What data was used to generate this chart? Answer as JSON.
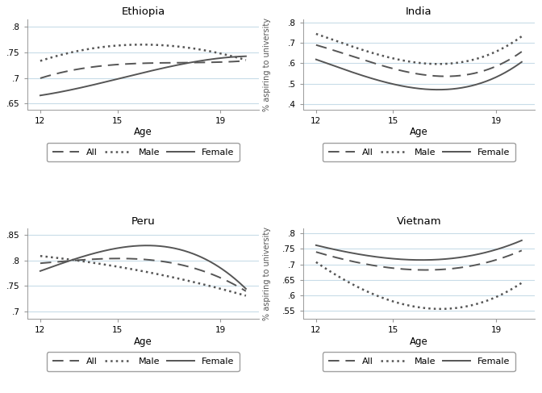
{
  "panels": [
    {
      "title": "Ethiopia",
      "ylim": [
        0.638,
        0.815
      ],
      "yticks": [
        0.65,
        0.7,
        0.75,
        0.8
      ],
      "yticklabels": [
        ".65",
        ".7",
        ".75",
        ".8"
      ],
      "ylabel_right": true,
      "all": {
        "x": [
          12,
          13,
          14,
          15,
          16,
          17,
          18,
          19,
          20
        ],
        "y": [
          0.7,
          0.712,
          0.72,
          0.726,
          0.73,
          0.731,
          0.73,
          0.728,
          0.735
        ]
      },
      "male": {
        "x": [
          12,
          13,
          14,
          15,
          16,
          17,
          18,
          19,
          20
        ],
        "y": [
          0.733,
          0.748,
          0.758,
          0.763,
          0.765,
          0.763,
          0.758,
          0.748,
          0.735
        ]
      },
      "female": {
        "x": [
          12,
          13,
          14,
          15,
          16,
          17,
          18,
          19,
          20
        ],
        "y": [
          0.666,
          0.674,
          0.685,
          0.698,
          0.711,
          0.722,
          0.731,
          0.738,
          0.743
        ]
      }
    },
    {
      "title": "India",
      "ylim": [
        0.375,
        0.815
      ],
      "yticks": [
        0.4,
        0.5,
        0.6,
        0.7,
        0.8
      ],
      "yticklabels": [
        ".4",
        ".5",
        ".6",
        ".7",
        ".8"
      ],
      "ylabel_right": false,
      "all": {
        "x": [
          12,
          13,
          14,
          15,
          16,
          17,
          18,
          19,
          20
        ],
        "y": [
          0.685,
          0.655,
          0.625,
          0.56,
          0.54,
          0.54,
          0.555,
          0.585,
          0.655
        ]
      },
      "male": {
        "x": [
          12,
          13,
          14,
          15,
          16,
          17,
          18,
          19,
          20
        ],
        "y": [
          0.74,
          0.705,
          0.665,
          0.615,
          0.598,
          0.6,
          0.618,
          0.658,
          0.73
        ]
      },
      "female": {
        "x": [
          12,
          13,
          14,
          15,
          16,
          17,
          18,
          19,
          20
        ],
        "y": [
          0.615,
          0.58,
          0.54,
          0.49,
          0.472,
          0.474,
          0.494,
          0.533,
          0.605
        ]
      }
    },
    {
      "title": "Peru",
      "ylim": [
        0.685,
        0.862
      ],
      "yticks": [
        0.7,
        0.75,
        0.8,
        0.85
      ],
      "yticklabels": [
        ".7",
        ".75",
        ".8",
        ".85"
      ],
      "ylabel_right": true,
      "all": {
        "x": [
          12,
          13,
          14,
          15,
          16,
          17,
          18,
          19,
          20
        ],
        "y": [
          0.793,
          0.8,
          0.803,
          0.803,
          0.8,
          0.795,
          0.785,
          0.768,
          0.738
        ]
      },
      "male": {
        "x": [
          12,
          13,
          14,
          15,
          16,
          17,
          18,
          19,
          20
        ],
        "y": [
          0.808,
          0.803,
          0.796,
          0.787,
          0.778,
          0.768,
          0.757,
          0.745,
          0.73
        ]
      },
      "female": {
        "x": [
          12,
          13,
          14,
          15,
          16,
          17,
          18,
          19,
          20
        ],
        "y": [
          0.778,
          0.798,
          0.813,
          0.823,
          0.828,
          0.825,
          0.812,
          0.787,
          0.743
        ]
      }
    },
    {
      "title": "Vietnam",
      "ylim": [
        0.525,
        0.815
      ],
      "yticks": [
        0.55,
        0.6,
        0.65,
        0.7,
        0.75,
        0.8
      ],
      "yticklabels": [
        ".55",
        ".6",
        ".65",
        ".7",
        ".75",
        ".8"
      ],
      "ylabel_right": false,
      "all": {
        "x": [
          12,
          13,
          14,
          15,
          16,
          17,
          18,
          19,
          20
        ],
        "y": [
          0.74,
          0.718,
          0.7,
          0.688,
          0.682,
          0.685,
          0.695,
          0.714,
          0.745
        ]
      },
      "male": {
        "x": [
          12,
          13,
          14,
          15,
          16,
          17,
          18,
          19,
          20
        ],
        "y": [
          0.705,
          0.66,
          0.613,
          0.578,
          0.56,
          0.558,
          0.57,
          0.595,
          0.64
        ]
      },
      "female": {
        "x": [
          12,
          13,
          14,
          15,
          16,
          17,
          18,
          19,
          20
        ],
        "y": [
          0.762,
          0.743,
          0.728,
          0.718,
          0.715,
          0.718,
          0.728,
          0.746,
          0.778
        ]
      }
    }
  ],
  "xticks": [
    12,
    15,
    19
  ],
  "xticklabels": [
    "12",
    "15",
    "19"
  ],
  "xlim": [
    11.5,
    20.5
  ],
  "xlabel": "Age",
  "ylabel": "% aspiring to university",
  "line_color": "#555555",
  "grid_color": "#c8dce8",
  "background_color": "#ffffff"
}
